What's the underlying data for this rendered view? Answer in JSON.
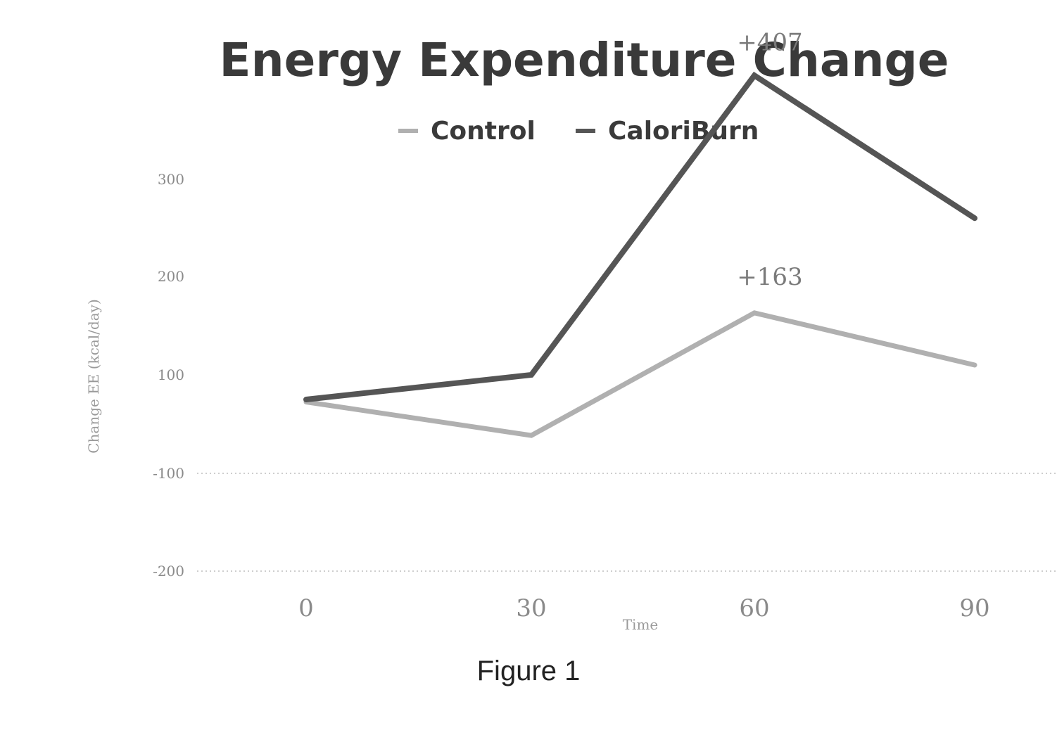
{
  "chart_data": {
    "type": "line",
    "title": "Energy Expenditure Change",
    "xlabel": "Time",
    "ylabel": "Change EE (kcal/day)",
    "x": [
      0,
      30,
      60,
      90
    ],
    "x_tick_labels": [
      "0",
      "30",
      "60",
      "90"
    ],
    "y_tick_labels": [
      "-200",
      "-100",
      "100",
      "200",
      "300"
    ],
    "ylim": [
      -200,
      300
    ],
    "legend_position": "top-center",
    "grid": "dotted lines at negative y ticks",
    "series": [
      {
        "name": "Control",
        "values": [
          45,
          -23,
          163,
          110
        ],
        "color": "#b0b0b0"
      },
      {
        "name": "CaloriBurn",
        "values": [
          50,
          100,
          407,
          260
        ],
        "color": "#555555"
      }
    ],
    "annotations": [
      {
        "text": "+407",
        "x": 60,
        "y": 407,
        "series": "CaloriBurn"
      },
      {
        "text": "+163",
        "x": 60,
        "y": 163,
        "series": "Control"
      }
    ]
  },
  "caption": "Figure 1"
}
